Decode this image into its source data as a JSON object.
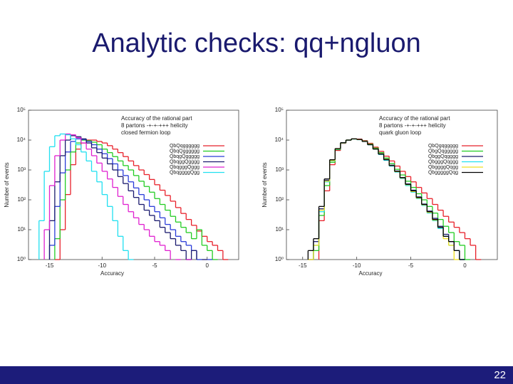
{
  "title": "Analytic checks: qq+ngluon",
  "page_number": "22",
  "chart_data": [
    {
      "type": "histogram",
      "xlabel": "Accuracy",
      "ylabel": "Number of events",
      "log_y": true,
      "annotations": [
        "Accuracy of the rational part",
        "8 partons -+-+-+++ helicity",
        "closed fermion loop"
      ],
      "xlim": [
        -17,
        3
      ],
      "ylim": [
        1,
        100000
      ],
      "xticks": [
        -15,
        -10,
        -5,
        0
      ],
      "yticks": [
        {
          "value": 1,
          "label": "10⁰"
        },
        {
          "value": 10,
          "label": "10¹"
        },
        {
          "value": 100,
          "label": "10²"
        },
        {
          "value": 1000,
          "label": "10³"
        },
        {
          "value": 10000,
          "label": "10⁴"
        },
        {
          "value": 100000,
          "label": "10⁵"
        }
      ],
      "bins": [
        -16.5,
        -16,
        -15.5,
        -15,
        -14.5,
        -14,
        -13.5,
        -13,
        -12.5,
        -12,
        -11.5,
        -11,
        -10.5,
        -10,
        -9.5,
        -9,
        -8.5,
        -8,
        -7.5,
        -7,
        -6.5,
        -6,
        -5.5,
        -5,
        -4.5,
        -4,
        -3.5,
        -3,
        -2.5,
        -2,
        -1.5,
        -1,
        -0.5,
        0,
        0.5,
        1,
        1.5,
        2
      ],
      "series": [
        {
          "name": "QbQqgggggg",
          "color": "#e8202a",
          "values": [
            null,
            null,
            null,
            null,
            1,
            10,
            150,
            1500,
            5000,
            8000,
            10000,
            10000,
            9000,
            8000,
            6500,
            5000,
            3800,
            2800,
            2000,
            1400,
            1000,
            700,
            480,
            320,
            210,
            140,
            90,
            55,
            35,
            22,
            14,
            9,
            6,
            4,
            3,
            2,
            1
          ]
        },
        {
          "name": "QbqQgggggg",
          "color": "#22cc22",
          "values": [
            null,
            null,
            null,
            null,
            5,
            100,
            1000,
            4000,
            8000,
            10000,
            9500,
            8500,
            7000,
            5000,
            3800,
            2800,
            2000,
            1400,
            1000,
            650,
            420,
            280,
            180,
            110,
            70,
            45,
            28,
            18,
            12,
            8,
            5,
            10,
            3,
            2,
            1,
            null,
            null
          ]
        },
        {
          "name": "QbqgQggggg",
          "color": "#2a3cd8",
          "values": [
            null,
            null,
            null,
            3,
            60,
            800,
            4000,
            9000,
            11000,
            10500,
            9000,
            7000,
            5000,
            3500,
            2400,
            1600,
            1000,
            650,
            400,
            250,
            150,
            100,
            60,
            40,
            25,
            15,
            10,
            6,
            4,
            3,
            2,
            1,
            null,
            1,
            null,
            null,
            null
          ]
        },
        {
          "name": "QbqggQgggg",
          "color": "#1a1a6e",
          "values": [
            null,
            null,
            null,
            20,
            400,
            3000,
            10000,
            14000,
            13000,
            11000,
            8000,
            5500,
            3800,
            2500,
            1600,
            1000,
            600,
            350,
            200,
            120,
            70,
            45,
            30,
            20,
            12,
            8,
            5,
            3,
            2,
            1,
            2,
            null,
            1,
            null,
            null,
            null,
            null
          ]
        },
        {
          "name": "QbqgggQggg",
          "color": "#e020d0",
          "values": [
            null,
            null,
            10,
            300,
            3000,
            10000,
            16000,
            15000,
            12000,
            8000,
            5000,
            3000,
            1700,
            900,
            500,
            260,
            130,
            70,
            40,
            25,
            15,
            10,
            6,
            4,
            3,
            2,
            null,
            1,
            null,
            1,
            null,
            null,
            null,
            null,
            null,
            null,
            null
          ]
        },
        {
          "name": "QbqggggQgg",
          "color": "#20e0f0",
          "values": [
            null,
            20,
            900,
            6000,
            14000,
            16000,
            15000,
            11000,
            7000,
            4000,
            2000,
            900,
            400,
            150,
            60,
            20,
            6,
            2,
            1,
            null,
            null,
            null,
            null,
            null,
            null,
            null,
            null,
            null,
            null,
            null,
            null,
            null,
            null,
            null,
            null,
            null,
            null
          ]
        }
      ]
    },
    {
      "type": "histogram",
      "xlabel": "Accuracy",
      "ylabel": "Number of events",
      "log_y": true,
      "annotations": [
        "Accuracy of the rational part",
        "8 partons -+-+-+++ helicity",
        "quark gluon loop"
      ],
      "xlim": [
        -16.5,
        3
      ],
      "ylim": [
        1,
        100000
      ],
      "xticks": [
        -15,
        -10,
        -5,
        0
      ],
      "yticks": [
        {
          "value": 1,
          "label": "10⁰"
        },
        {
          "value": 10,
          "label": "10¹"
        },
        {
          "value": 100,
          "label": "10²"
        },
        {
          "value": 1000,
          "label": "10³"
        },
        {
          "value": 10000,
          "label": "10⁴"
        },
        {
          "value": 100000,
          "label": "10⁵"
        }
      ],
      "bins": [
        -16.5,
        -16,
        -15.5,
        -15,
        -14.5,
        -14,
        -13.5,
        -13,
        -12.5,
        -12,
        -11.5,
        -11,
        -10.5,
        -10,
        -9.5,
        -9,
        -8.5,
        -8,
        -7.5,
        -7,
        -6.5,
        -6,
        -5.5,
        -5,
        -4.5,
        -4,
        -3.5,
        -3,
        -2.5,
        -2,
        -1.5,
        -1,
        -0.5,
        0,
        0.5,
        1,
        1.5,
        2
      ],
      "series": [
        {
          "name": "QbQgqggggg",
          "color": "#e8202a",
          "values": [
            null,
            null,
            null,
            null,
            null,
            null,
            20,
            200,
            1500,
            4500,
            7800,
            10000,
            11000,
            10800,
            9600,
            7800,
            5800,
            4200,
            2900,
            2000,
            1350,
            900,
            600,
            400,
            260,
            170,
            110,
            70,
            45,
            28,
            18,
            12,
            8,
            5,
            3,
            1,
            null
          ]
        },
        {
          "name": "QbgQqggggg",
          "color": "#22cc22",
          "values": [
            null,
            null,
            null,
            null,
            null,
            2,
            30,
            300,
            1800,
            4800,
            8000,
            10000,
            11000,
            10500,
            9300,
            7400,
            5400,
            3800,
            2500,
            1650,
            1050,
            680,
            420,
            260,
            160,
            100,
            60,
            36,
            22,
            13,
            8,
            4,
            3,
            1,
            null,
            null,
            null
          ]
        },
        {
          "name": "QbggQqgggg",
          "color": "#1a1a6e",
          "values": [
            null,
            null,
            null,
            null,
            1,
            4,
            50,
            450,
            2100,
            5000,
            8000,
            10000,
            11000,
            10500,
            9200,
            7200,
            5100,
            3500,
            2300,
            1450,
            920,
            560,
            340,
            210,
            125,
            72,
            42,
            24,
            13,
            7,
            4,
            2,
            1,
            null,
            null,
            null,
            null
          ]
        },
        {
          "name": "QbgggQqggg",
          "color": "#20e0f0",
          "values": [
            null,
            null,
            null,
            null,
            null,
            3,
            40,
            400,
            2000,
            5000,
            8000,
            10000,
            10800,
            10300,
            9000,
            7000,
            5000,
            3300,
            2100,
            1350,
            850,
            520,
            300,
            180,
            110,
            65,
            36,
            20,
            11,
            6,
            3,
            2,
            1,
            null,
            null,
            null,
            null
          ]
        },
        {
          "name": "QbggggQqgg",
          "color": "#f0e020",
          "values": [
            null,
            null,
            null,
            null,
            1,
            3,
            45,
            420,
            2050,
            5100,
            8100,
            10000,
            10900,
            10400,
            9100,
            7100,
            5050,
            3450,
            2250,
            1400,
            880,
            540,
            320,
            190,
            115,
            68,
            38,
            21,
            12,
            5,
            3,
            1,
            null,
            null,
            null,
            null,
            null
          ]
        },
        {
          "name": "QbgggggQqg",
          "color": "#000000",
          "values": [
            null,
            null,
            null,
            null,
            2,
            5,
            60,
            500,
            2200,
            5200,
            8200,
            10000,
            11000,
            10500,
            9000,
            7000,
            5000,
            3400,
            2200,
            1400,
            900,
            550,
            330,
            200,
            120,
            70,
            40,
            22,
            12,
            6,
            4,
            2,
            1,
            null,
            null,
            null,
            null
          ]
        }
      ]
    }
  ]
}
